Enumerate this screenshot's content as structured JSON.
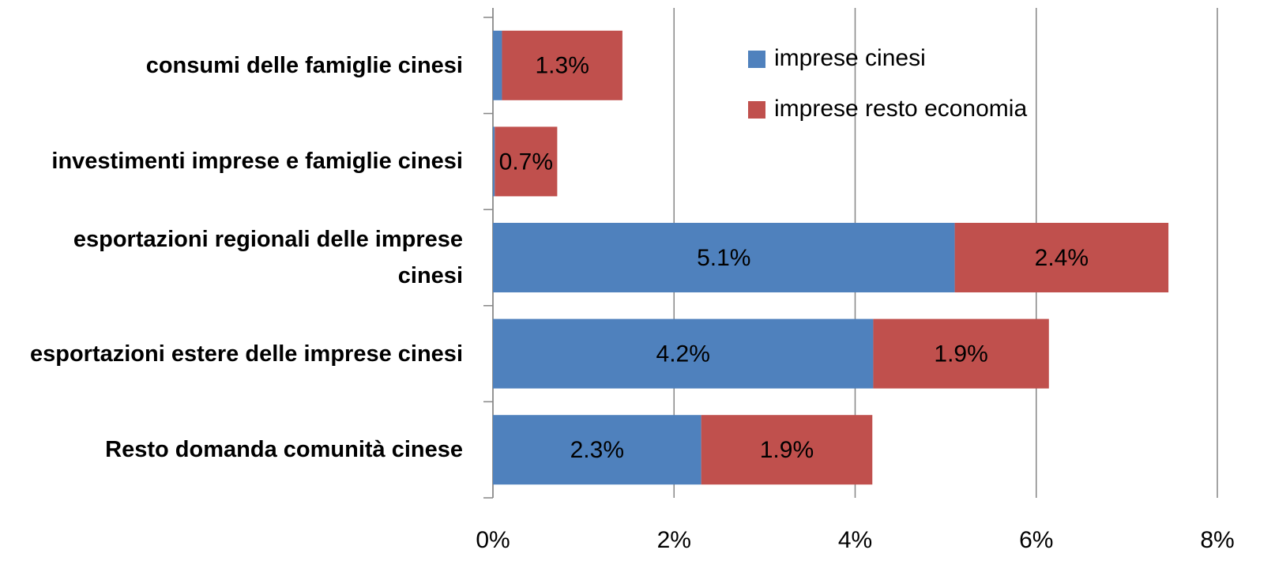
{
  "chart_data": {
    "type": "stacked-bar-horizontal",
    "categories": [
      "consumi delle famiglie cinesi",
      "investimenti imprese e famiglie cinesi",
      "esportazioni regionali delle imprese cinesi",
      "esportazioni estere delle imprese cinesi",
      "Resto domanda comunità cinese"
    ],
    "series": [
      {
        "name": "imprese cinesi",
        "color": "#4f81bd",
        "values": [
          0.1,
          0.02,
          5.1,
          4.2,
          2.3
        ],
        "value_labels": [
          null,
          null,
          "5.1%",
          "4.2%",
          "2.3%"
        ]
      },
      {
        "name": "imprese resto economia",
        "color": "#c0504d",
        "values": [
          1.33,
          0.69,
          2.36,
          1.94,
          1.89
        ],
        "value_labels": [
          "1.3%",
          "0.7%",
          "2.4%",
          "1.9%",
          "1.9%"
        ]
      }
    ],
    "xlim": [
      0,
      8
    ],
    "xticks": [
      {
        "value": 0,
        "label": "0%"
      },
      {
        "value": 2,
        "label": "2%"
      },
      {
        "value": 4,
        "label": "4%"
      },
      {
        "value": 6,
        "label": "6%"
      },
      {
        "value": 8,
        "label": "8%"
      }
    ],
    "grid": true
  }
}
